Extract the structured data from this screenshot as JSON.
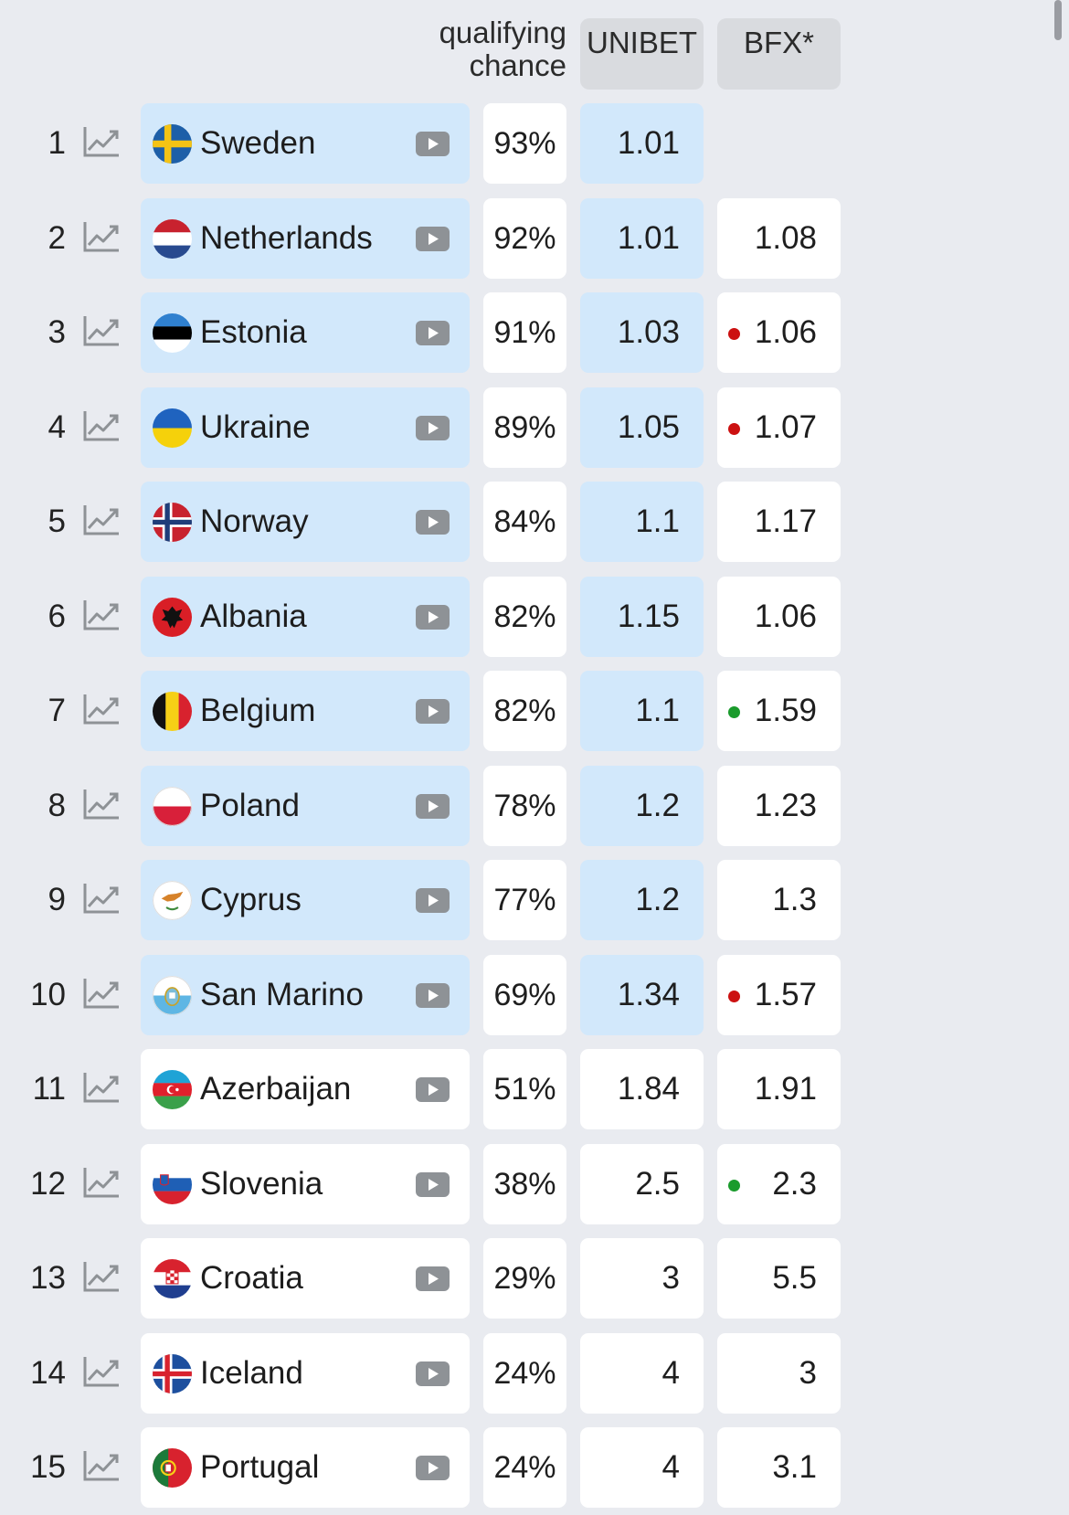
{
  "header": {
    "qualifying_line1": "qualifying",
    "qualifying_line2": "chance",
    "unibet": "UNIBET",
    "bfx": "BFX*"
  },
  "colors": {
    "highlight": "#d2e8fb",
    "dot_red": "#cc1111",
    "dot_green": "#1a9b2c"
  },
  "rows": [
    {
      "rank": "1",
      "country": "Sweden",
      "flag": "sweden-flag-icon",
      "chance": "93%",
      "unibet": "1.01",
      "bfx": "",
      "dot": "",
      "highlight": true
    },
    {
      "rank": "2",
      "country": "Netherlands",
      "flag": "netherlands-flag-icon",
      "chance": "92%",
      "unibet": "1.01",
      "bfx": "1.08",
      "dot": "",
      "highlight": true
    },
    {
      "rank": "3",
      "country": "Estonia",
      "flag": "estonia-flag-icon",
      "chance": "91%",
      "unibet": "1.03",
      "bfx": "1.06",
      "dot": "red",
      "highlight": true
    },
    {
      "rank": "4",
      "country": "Ukraine",
      "flag": "ukraine-flag-icon",
      "chance": "89%",
      "unibet": "1.05",
      "bfx": "1.07",
      "dot": "red",
      "highlight": true
    },
    {
      "rank": "5",
      "country": "Norway",
      "flag": "norway-flag-icon",
      "chance": "84%",
      "unibet": "1.1",
      "bfx": "1.17",
      "dot": "",
      "highlight": true
    },
    {
      "rank": "6",
      "country": "Albania",
      "flag": "albania-flag-icon",
      "chance": "82%",
      "unibet": "1.15",
      "bfx": "1.06",
      "dot": "",
      "highlight": true
    },
    {
      "rank": "7",
      "country": "Belgium",
      "flag": "belgium-flag-icon",
      "chance": "82%",
      "unibet": "1.1",
      "bfx": "1.59",
      "dot": "green",
      "highlight": true
    },
    {
      "rank": "8",
      "country": "Poland",
      "flag": "poland-flag-icon",
      "chance": "78%",
      "unibet": "1.2",
      "bfx": "1.23",
      "dot": "",
      "highlight": true
    },
    {
      "rank": "9",
      "country": "Cyprus",
      "flag": "cyprus-flag-icon",
      "chance": "77%",
      "unibet": "1.2",
      "bfx": "1.3",
      "dot": "",
      "highlight": true
    },
    {
      "rank": "10",
      "country": "San Marino",
      "flag": "san-marino-flag-icon",
      "chance": "69%",
      "unibet": "1.34",
      "bfx": "1.57",
      "dot": "red",
      "highlight": true
    },
    {
      "rank": "11",
      "country": "Azerbaijan",
      "flag": "azerbaijan-flag-icon",
      "chance": "51%",
      "unibet": "1.84",
      "bfx": "1.91",
      "dot": "",
      "highlight": false
    },
    {
      "rank": "12",
      "country": "Slovenia",
      "flag": "slovenia-flag-icon",
      "chance": "38%",
      "unibet": "2.5",
      "bfx": "2.3",
      "dot": "green",
      "highlight": false
    },
    {
      "rank": "13",
      "country": "Croatia",
      "flag": "croatia-flag-icon",
      "chance": "29%",
      "unibet": "3",
      "bfx": "5.5",
      "dot": "",
      "highlight": false
    },
    {
      "rank": "14",
      "country": "Iceland",
      "flag": "iceland-flag-icon",
      "chance": "24%",
      "unibet": "4",
      "bfx": "3",
      "dot": "",
      "highlight": false
    },
    {
      "rank": "15",
      "country": "Portugal",
      "flag": "portugal-flag-icon",
      "chance": "24%",
      "unibet": "4",
      "bfx": "3.1",
      "dot": "",
      "highlight": false
    }
  ]
}
